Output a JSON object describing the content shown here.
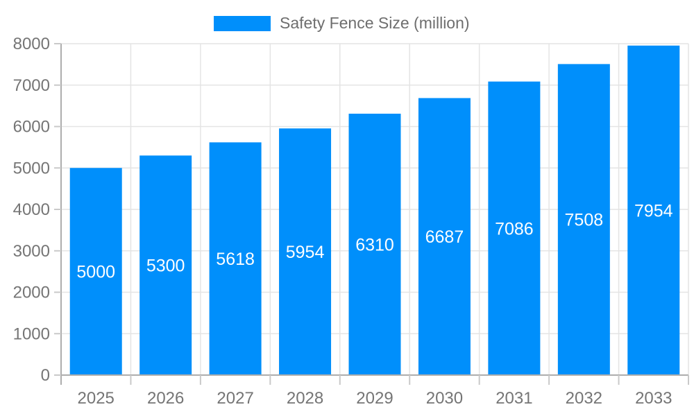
{
  "legend": {
    "position": "top",
    "items": [
      {
        "label": "Safety Fence Size (million)",
        "color": "#008FFB"
      }
    ]
  },
  "chart_data": {
    "type": "bar",
    "categories": [
      "2025",
      "2026",
      "2027",
      "2028",
      "2029",
      "2030",
      "2031",
      "2032",
      "2033"
    ],
    "series": [
      {
        "name": "Safety Fence Size (million)",
        "color": "#008FFB",
        "values": [
          5000,
          5300,
          5618,
          5954,
          6310,
          6687,
          7086,
          7508,
          7954
        ]
      }
    ],
    "value_labels": "inside-center",
    "ylim": [
      0,
      8000
    ],
    "yticks": [
      0,
      1000,
      2000,
      3000,
      4000,
      5000,
      6000,
      7000,
      8000
    ],
    "grid": true,
    "legend_position": "top"
  },
  "colors": {
    "bar": "#008FFB",
    "grid_line": "#e4e4e4",
    "axis_line": "#adadad",
    "tick": "#c9c9c9",
    "axis_text": "#757575",
    "legend_text": "#6e6e6e",
    "value_label_text": "#ffffff",
    "background": "#ffffff"
  }
}
